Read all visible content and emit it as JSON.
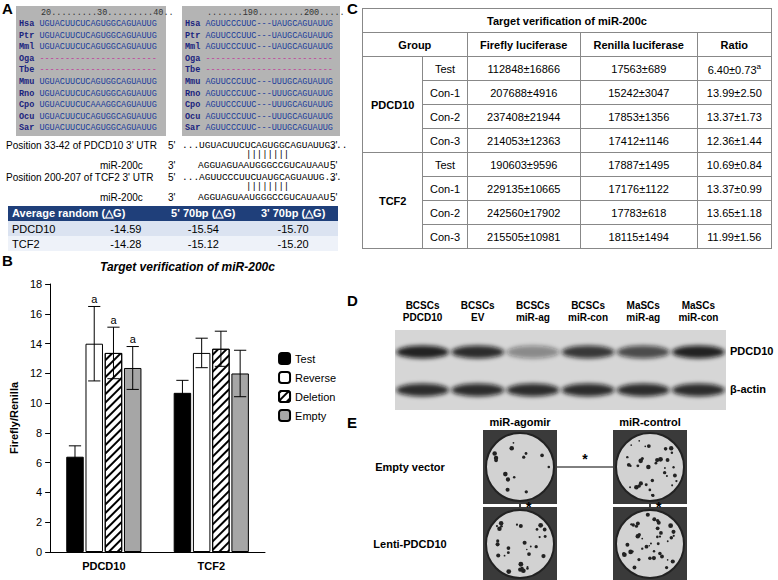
{
  "chart_data": {
    "panel": "B",
    "type": "bar",
    "title": "Target verification of miR-200c",
    "y_label": "Firefly/Renilla",
    "categories": [
      "PDCD10",
      "TCF2"
    ],
    "series": [
      {
        "name": "Test",
        "color": "#000000",
        "values": [
          6.4,
          10.69
        ],
        "errors": [
          0.73,
          0.84
        ]
      },
      {
        "name": "Reverse",
        "color": "#ffffff",
        "values": [
          13.99,
          13.37
        ],
        "errors": [
          2.5,
          0.99
        ]
      },
      {
        "name": "Deletion",
        "color": "#ffffff",
        "values": [
          13.37,
          13.65
        ],
        "errors": [
          1.73,
          1.18
        ]
      },
      {
        "name": "Empty",
        "color": "#a6a6a6",
        "values": [
          12.36,
          11.99
        ],
        "errors": [
          1.44,
          1.56
        ]
      }
    ],
    "annotations": [
      {
        "series": "Reverse",
        "category": "PDCD10",
        "text": "a"
      },
      {
        "series": "Deletion",
        "category": "PDCD10",
        "text": "a"
      },
      {
        "series": "Empty",
        "category": "PDCD10",
        "text": "a"
      }
    ],
    "ylim": [
      0,
      18
    ],
    "yticks": [
      0,
      2,
      4,
      6,
      8,
      10,
      12,
      14,
      16,
      18
    ],
    "legend": "right",
    "grid": false
  },
  "alignment": {
    "label": "A",
    "blocks": [
      {
        "ruler": "20.........30.........40..",
        "rows": [
          {
            "species": "Hsa",
            "seq": "UGUACUUCUCAGUGGCAGUAUUG"
          },
          {
            "species": "Ptr",
            "seq": "UGUACUUCUCAGUGGCAGUAUUG"
          },
          {
            "species": "Mml",
            "seq": "UGUACUUCUCAGUGGCAGUAUUG"
          },
          {
            "species": "Oga",
            "seq": "-----------------------"
          },
          {
            "species": "Tbe",
            "seq": "-----------------------"
          },
          {
            "species": "Mmu",
            "seq": "UGUACUUCUCAGUGGCAGUAUUG"
          },
          {
            "species": "Rno",
            "seq": "UGUACUUCUCAGUGGCAGUAUUG"
          },
          {
            "species": "Cpo",
            "seq": "UGUACUUCUCAAAGGCAGUAUUG"
          },
          {
            "species": "Ocu",
            "seq": "UGUACUUCUCAGUGGCAGUAUUG"
          },
          {
            "species": "Sar",
            "seq": "UGUACUUCUCAGUGGCAGUAUUG"
          }
        ]
      },
      {
        "ruler": ".......190.........200.....",
        "rows": [
          {
            "species": "Hsa",
            "seq": "AGUUCCCUUC---UAUGCAGUAUUG"
          },
          {
            "species": "Ptr",
            "seq": "AGUUCCCUUC---UAUGCAGUAUUG"
          },
          {
            "species": "Mml",
            "seq": "AGUUCCCUUC---UAUGCAGUAUUG"
          },
          {
            "species": "Oga",
            "seq": "-------------------------"
          },
          {
            "species": "Tbe",
            "seq": "-------------------------"
          },
          {
            "species": "Mmu",
            "seq": "AGUUCCCUUC---UUUGCAGUAUUG"
          },
          {
            "species": "Rno",
            "seq": "AGUUCCCUUC---UUUGCAGUAUUG"
          },
          {
            "species": "Cpo",
            "seq": "AGUUCCCUUC---UUUGCAGUAUUG"
          },
          {
            "species": "Ocu",
            "seq": "AGUUCCCUUC---UUUGCAGUAUUG"
          },
          {
            "species": "Sar",
            "seq": "AGUUCCCUUC---UUUGCAGUAUUG"
          }
        ]
      }
    ]
  },
  "duplexes": [
    {
      "title": "Position 33-42 of PDCD10 3' UTR",
      "target_5": "5'",
      "target": "...UGUACUUCUCAGUGGCAGUAUUG...",
      "target_3": "3'",
      "pairs": "||||||||",
      "mirna_name": "miR-200c",
      "mirna_3": "3'",
      "mirna": "AGGUAGUAAUGGGCCGUCAUAAU",
      "mirna_5": "5'"
    },
    {
      "title": "Position 200-207 of TCF2 3' UTR",
      "target_5": "5'",
      "target": "...AGUUCCCUUCUAUGCAGUAUUG...",
      "target_3": "3'",
      "pairs": "||||||||",
      "mirna_name": "miR-200c",
      "mirna_3": "3'",
      "mirna": "AGGUAGUAAUGGGCCGUCAUAAU",
      "mirna_5": "5'"
    }
  ],
  "energy_table": {
    "header": [
      "Average random (△G)",
      "5' 70bp (△G)",
      "3' 70bp (△G)"
    ],
    "rows": [
      [
        "PDCD10",
        "-14.59",
        "-15.54",
        "-15.70"
      ],
      [
        "TCF2",
        "-14.28",
        "-15.12",
        "-15.20"
      ]
    ]
  },
  "luciferase_table": {
    "label": "C",
    "title": "Target verification of miR-200c",
    "header": [
      "Group",
      "Firefly luciferase",
      "Renilla luciferase",
      "Ratio"
    ],
    "groups": [
      {
        "name": "PDCD10",
        "rows": [
          [
            {
              "text": "Test"
            },
            {
              "text": "112848±16866"
            },
            {
              "text": "17563±689"
            },
            {
              "text": "6.40±0.73",
              "sup": "a"
            }
          ],
          [
            {
              "text": "Con-1"
            },
            {
              "text": "207688±4916"
            },
            {
              "text": "15242±3047"
            },
            {
              "text": "13.99±2.50"
            }
          ],
          [
            {
              "text": "Con-2"
            },
            {
              "text": "237408±21944"
            },
            {
              "text": "17853±1356"
            },
            {
              "text": "13.37±1.73"
            }
          ],
          [
            {
              "text": "Con-3"
            },
            {
              "text": "214053±12363"
            },
            {
              "text": "17412±1146"
            },
            {
              "text": "12.36±1.44"
            }
          ]
        ]
      },
      {
        "name": "TCF2",
        "rows": [
          [
            {
              "text": "Test"
            },
            {
              "text": "190603±9596"
            },
            {
              "text": "17887±1495"
            },
            {
              "text": "10.69±0.84"
            }
          ],
          [
            {
              "text": "Con-1"
            },
            {
              "text": "229135±10665"
            },
            {
              "text": "17176±1122"
            },
            {
              "text": "13.37±0.99"
            }
          ],
          [
            {
              "text": "Con-2"
            },
            {
              "text": "242560±17902"
            },
            {
              "text": "17783±618"
            },
            {
              "text": "13.65±1.18"
            }
          ],
          [
            {
              "text": "Con-3"
            },
            {
              "text": "215505±10981"
            },
            {
              "text": "18115±1494"
            },
            {
              "text": "11.99±1.56"
            }
          ]
        ]
      }
    ]
  },
  "western_blot": {
    "label": "D",
    "lanes": [
      [
        "BCSCs",
        "PDCD10"
      ],
      [
        "BCSCs",
        "EV"
      ],
      [
        "BCSCs",
        "miR-ag"
      ],
      [
        "BCSCs",
        "miR-con"
      ],
      [
        "MaSCs",
        "miR-ag"
      ],
      [
        "MaSCs",
        "miR-con"
      ]
    ],
    "rows": [
      {
        "name": "PDCD10",
        "intensity": [
          0.9,
          0.85,
          0.4,
          0.8,
          0.7,
          0.9
        ]
      },
      {
        "name": "β-actin",
        "intensity": [
          0.85,
          0.85,
          0.85,
          0.85,
          0.85,
          0.85
        ]
      }
    ]
  },
  "colony_assay": {
    "label": "E",
    "columns": [
      "miR-agomir",
      "miR-control"
    ],
    "rows": [
      "Empty vector",
      "Lenti-PDCD10"
    ],
    "comparisons": [
      {
        "from": [
          0,
          0
        ],
        "to": [
          0,
          1
        ],
        "text": "*"
      },
      {
        "from": [
          0,
          0
        ],
        "to": [
          1,
          0
        ],
        "text": "*"
      },
      {
        "from": [
          0,
          1
        ],
        "to": [
          1,
          1
        ],
        "text": "*"
      }
    ]
  }
}
